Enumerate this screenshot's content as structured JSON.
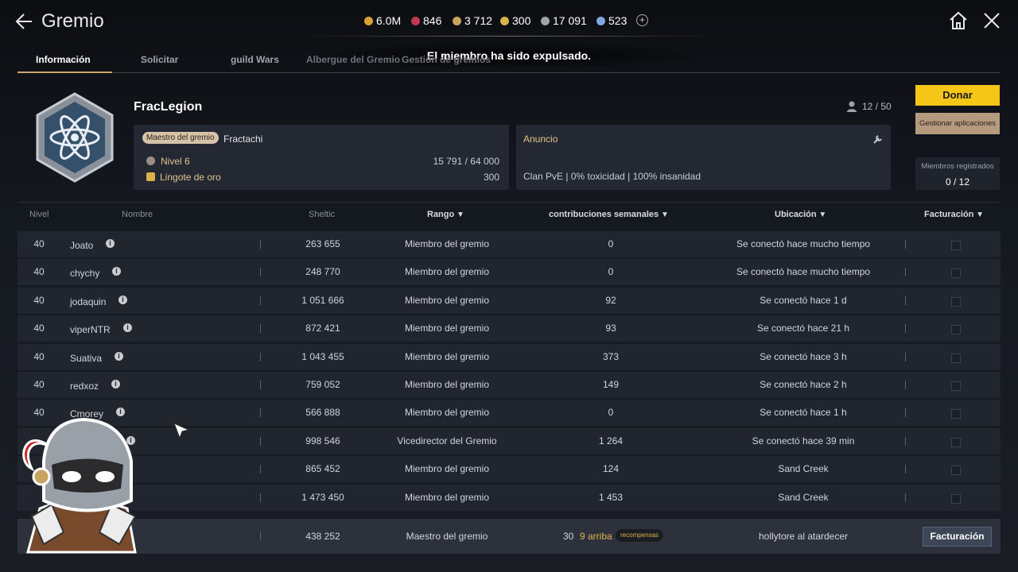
{
  "header": {
    "title": "Gremio",
    "currencies": [
      "6.0M",
      "846",
      "3 712",
      "300",
      "17 091",
      "523"
    ]
  },
  "tabs": [
    "Información",
    "Solicitar",
    "guild Wars",
    "Albergue del Gremio",
    "Gestión de gremios"
  ],
  "toast": "El miembro ha sido expulsado.",
  "guild": {
    "name": "FracLegion",
    "members": "12 / 50",
    "donate": "Donar",
    "manage": "Gestionar aplicaciones",
    "registered_label": "Miembros registrados",
    "registered": "0 / 12",
    "master_badge": "Maestro del gremio",
    "master": "Fractachi",
    "level": "Nivel 6",
    "level_progress": "15 791 / 64 000",
    "gold_label": "Lingote de oro",
    "gold": "300",
    "announcement_title": "Anuncio",
    "announcement": "Clan PvE | 0% toxicidad | 100% insanidad"
  },
  "table": {
    "columns": [
      "Nivel",
      "Nombre",
      "Sheltic",
      "Rango",
      "contribuciones semanales",
      "Ubicación",
      "Facturación"
    ],
    "rows": [
      {
        "level": "40",
        "name": "Joato",
        "sheltic": "263 655",
        "rank": "Miembro del gremio",
        "contribution": "0",
        "location": "Se conectó hace mucho tiempo"
      },
      {
        "level": "40",
        "name": "chychy",
        "sheltic": "248 770",
        "rank": "Miembro del gremio",
        "contribution": "0",
        "location": "Se conectó hace mucho tiempo"
      },
      {
        "level": "40",
        "name": "jodaquin",
        "sheltic": "1 051 666",
        "rank": "Miembro del gremio",
        "contribution": "92",
        "location": "Se conectó hace 1 d"
      },
      {
        "level": "40",
        "name": "viperNTR",
        "sheltic": "872 421",
        "rank": "Miembro del gremio",
        "contribution": "93",
        "location": "Se conectó hace 21 h"
      },
      {
        "level": "40",
        "name": "Suativa",
        "sheltic": "1 043 455",
        "rank": "Miembro del gremio",
        "contribution": "373",
        "location": "Se conectó hace 3 h"
      },
      {
        "level": "40",
        "name": "redxoz",
        "sheltic": "759 052",
        "rank": "Miembro del gremio",
        "contribution": "149",
        "location": "Se conectó hace 2 h"
      },
      {
        "level": "40",
        "name": "Cmorey",
        "sheltic": "566 888",
        "rank": "Miembro del gremio",
        "contribution": "0",
        "location": "Se conectó hace 1 h"
      },
      {
        "sheltic": "998 546",
        "rank": "Vicedirector del Gremio",
        "contribution": "1 264",
        "location": "Se conectó hace 39 min"
      },
      {
        "sheltic": "865 452",
        "rank": "Miembro del gremio",
        "contribution": "124",
        "location": "Sand Creek"
      },
      {
        "sheltic": "1 473 450",
        "rank": "Miembro del gremio",
        "contribution": "1 453",
        "location": "Sand Creek"
      }
    ],
    "own_row": {
      "sheltic": "438 252",
      "rank": "Maestro del gremio",
      "contribution": "30",
      "rank_change": "9 arriba",
      "rewards": "recompensas",
      "location": "hollytore al atardecer",
      "button": "Facturación"
    }
  }
}
